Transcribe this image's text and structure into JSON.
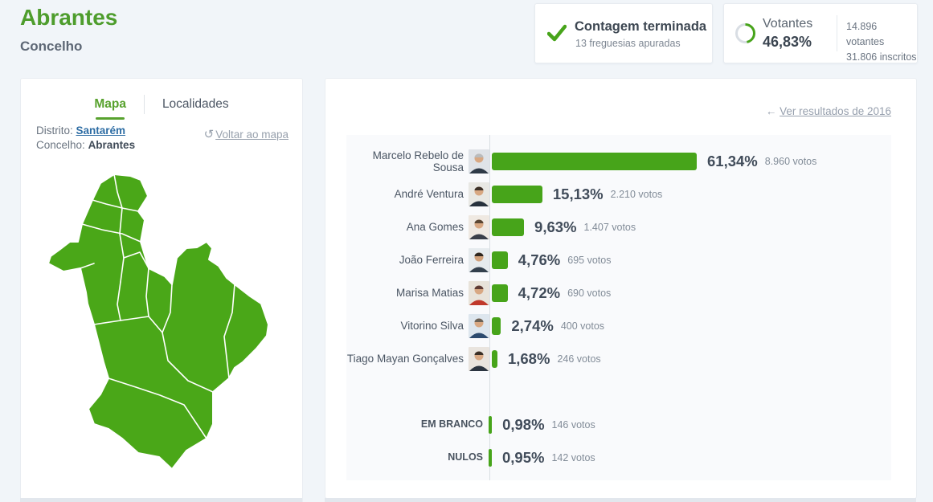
{
  "page": {
    "title": "Abrantes",
    "subtitle": "Concelho"
  },
  "status_card": {
    "title": "Contagem terminada",
    "subtitle": "13 freguesias apuradas",
    "check_color": "#47a41a"
  },
  "turnout_card": {
    "label": "Votantes",
    "percent_label": "46,83%",
    "percent": 46.83,
    "voters": "14.896 votantes",
    "registered": "31.806 inscritos",
    "ring_color": "#47a41a"
  },
  "map_panel": {
    "tab_map": "Mapa",
    "tab_localities": "Localidades",
    "district_label": "Distrito:",
    "district_value": "Santarém",
    "council_label": "Concelho:",
    "council_value": "Abrantes",
    "back_to_map": "Voltar ao mapa",
    "region_color": "#4aa718"
  },
  "results_panel": {
    "link_2016": "Ver resultados de 2016"
  },
  "icons": {
    "status": "check-icon",
    "turnout": "progress-ring",
    "back_to_map": "undo-icon",
    "link_2016": "left-arrow-icon"
  },
  "chart_data": {
    "type": "bar",
    "orientation": "horizontal",
    "bar_color": "#47a41a",
    "xlim": [
      0,
      100
    ],
    "unit": "percent of votes",
    "categories": [
      "Marcelo Rebelo de Sousa",
      "André Ventura",
      "Ana Gomes",
      "João Ferreira",
      "Marisa Matias",
      "Vitorino Silva",
      "Tiago Mayan Gonçalves",
      "EM BRANCO",
      "NULOS"
    ],
    "values": [
      61.34,
      15.13,
      9.63,
      4.76,
      4.72,
      2.74,
      1.68,
      0.98,
      0.95
    ],
    "percent_labels": [
      "61,34%",
      "15,13%",
      "9,63%",
      "4,76%",
      "4,72%",
      "2,74%",
      "1,68%",
      "0,98%",
      "0,95%"
    ],
    "votes": [
      8960,
      2210,
      1407,
      695,
      690,
      400,
      246,
      146,
      142
    ],
    "votes_labels": [
      "8.960 votos",
      "2.210 votos",
      "1.407 votos",
      "695 votos",
      "690 votos",
      "400 votos",
      "246 votos",
      "146 votos",
      "142 votos"
    ]
  }
}
